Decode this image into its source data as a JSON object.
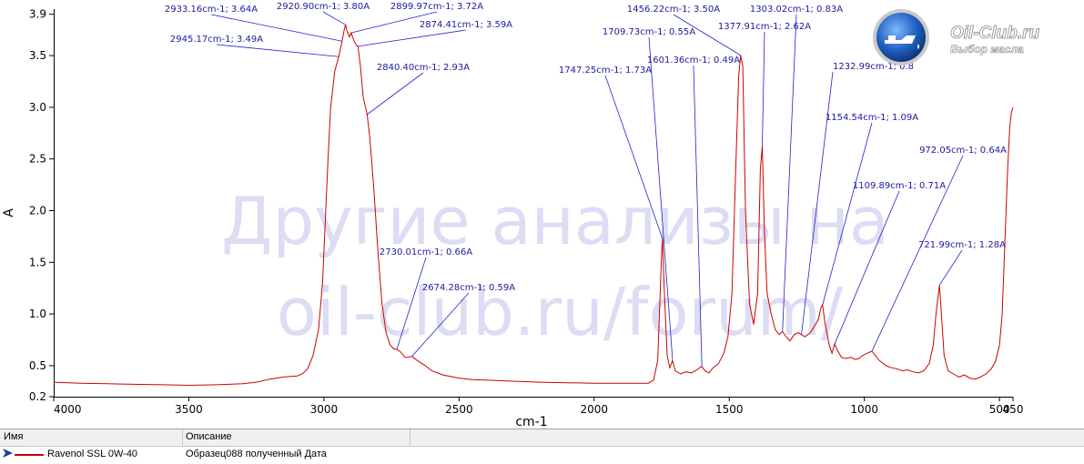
{
  "chart_data": {
    "type": "line",
    "xlabel": "cm-1",
    "ylabel": "A",
    "xlim": [
      4000,
      450
    ],
    "ylim": [
      0.2,
      3.95
    ],
    "x_ticks": [
      4000,
      3500,
      3000,
      2500,
      2000,
      1500,
      1000,
      500,
      450
    ],
    "y_ticks": [
      0.2,
      0.5,
      1.0,
      1.5,
      2.0,
      2.5,
      3.0,
      3.5,
      3.9
    ],
    "series": [
      {
        "name": "Ravenol SSL 0W-40",
        "color": "#cc0000",
        "points": [
          [
            4000,
            0.34
          ],
          [
            3900,
            0.33
          ],
          [
            3800,
            0.325
          ],
          [
            3700,
            0.32
          ],
          [
            3600,
            0.315
          ],
          [
            3500,
            0.31
          ],
          [
            3400,
            0.315
          ],
          [
            3300,
            0.325
          ],
          [
            3250,
            0.34
          ],
          [
            3200,
            0.37
          ],
          [
            3150,
            0.39
          ],
          [
            3100,
            0.4
          ],
          [
            3080,
            0.42
          ],
          [
            3060,
            0.47
          ],
          [
            3040,
            0.6
          ],
          [
            3020,
            0.85
          ],
          [
            3005,
            1.3
          ],
          [
            2995,
            1.9
          ],
          [
            2985,
            2.5
          ],
          [
            2975,
            3.0
          ],
          [
            2960,
            3.35
          ],
          [
            2945,
            3.49
          ],
          [
            2940,
            3.55
          ],
          [
            2933,
            3.64
          ],
          [
            2925,
            3.75
          ],
          [
            2920,
            3.8
          ],
          [
            2915,
            3.74
          ],
          [
            2905,
            3.68
          ],
          [
            2899,
            3.72
          ],
          [
            2890,
            3.65
          ],
          [
            2880,
            3.6
          ],
          [
            2874,
            3.59
          ],
          [
            2865,
            3.4
          ],
          [
            2855,
            3.1
          ],
          [
            2840,
            2.93
          ],
          [
            2830,
            2.7
          ],
          [
            2815,
            2.2
          ],
          [
            2800,
            1.6
          ],
          [
            2785,
            1.1
          ],
          [
            2770,
            0.82
          ],
          [
            2755,
            0.7
          ],
          [
            2740,
            0.66
          ],
          [
            2730,
            0.66
          ],
          [
            2715,
            0.63
          ],
          [
            2700,
            0.58
          ],
          [
            2690,
            0.58
          ],
          [
            2674,
            0.59
          ],
          [
            2655,
            0.55
          ],
          [
            2625,
            0.5
          ],
          [
            2600,
            0.45
          ],
          [
            2560,
            0.41
          ],
          [
            2500,
            0.38
          ],
          [
            2450,
            0.365
          ],
          [
            2400,
            0.36
          ],
          [
            2300,
            0.35
          ],
          [
            2200,
            0.34
          ],
          [
            2100,
            0.335
          ],
          [
            2000,
            0.33
          ],
          [
            1900,
            0.33
          ],
          [
            1800,
            0.33
          ],
          [
            1780,
            0.36
          ],
          [
            1765,
            0.55
          ],
          [
            1757,
            1.1
          ],
          [
            1750,
            1.6
          ],
          [
            1747,
            1.73
          ],
          [
            1740,
            1.2
          ],
          [
            1730,
            0.6
          ],
          [
            1720,
            0.48
          ],
          [
            1710,
            0.55
          ],
          [
            1700,
            0.45
          ],
          [
            1680,
            0.42
          ],
          [
            1660,
            0.44
          ],
          [
            1640,
            0.43
          ],
          [
            1620,
            0.46
          ],
          [
            1605,
            0.49
          ],
          [
            1601,
            0.49
          ],
          [
            1590,
            0.45
          ],
          [
            1575,
            0.43
          ],
          [
            1560,
            0.48
          ],
          [
            1540,
            0.52
          ],
          [
            1520,
            0.62
          ],
          [
            1505,
            0.78
          ],
          [
            1490,
            1.2
          ],
          [
            1475,
            2.5
          ],
          [
            1465,
            3.3
          ],
          [
            1458,
            3.5
          ],
          [
            1450,
            3.4
          ],
          [
            1440,
            2.0
          ],
          [
            1425,
            1.1
          ],
          [
            1410,
            0.9
          ],
          [
            1395,
            1.2
          ],
          [
            1385,
            2.4
          ],
          [
            1378,
            2.62
          ],
          [
            1370,
            1.8
          ],
          [
            1360,
            1.2
          ],
          [
            1345,
            1.0
          ],
          [
            1330,
            0.85
          ],
          [
            1315,
            0.8
          ],
          [
            1303,
            0.83
          ],
          [
            1290,
            0.78
          ],
          [
            1275,
            0.74
          ],
          [
            1260,
            0.8
          ],
          [
            1245,
            0.82
          ],
          [
            1233,
            0.8
          ],
          [
            1220,
            0.78
          ],
          [
            1200,
            0.82
          ],
          [
            1185,
            0.88
          ],
          [
            1170,
            0.95
          ],
          [
            1162,
            1.05
          ],
          [
            1155,
            1.09
          ],
          [
            1145,
            0.9
          ],
          [
            1130,
            0.7
          ],
          [
            1120,
            0.62
          ],
          [
            1110,
            0.71
          ],
          [
            1100,
            0.65
          ],
          [
            1085,
            0.58
          ],
          [
            1070,
            0.57
          ],
          [
            1050,
            0.58
          ],
          [
            1035,
            0.56
          ],
          [
            1020,
            0.57
          ],
          [
            1005,
            0.6
          ],
          [
            990,
            0.62
          ],
          [
            972,
            0.64
          ],
          [
            960,
            0.6
          ],
          [
            945,
            0.55
          ],
          [
            920,
            0.5
          ],
          [
            900,
            0.48
          ],
          [
            880,
            0.47
          ],
          [
            860,
            0.45
          ],
          [
            840,
            0.46
          ],
          [
            820,
            0.44
          ],
          [
            800,
            0.43
          ],
          [
            780,
            0.45
          ],
          [
            760,
            0.52
          ],
          [
            745,
            0.7
          ],
          [
            735,
            1.0
          ],
          [
            722,
            1.28
          ],
          [
            715,
            1.0
          ],
          [
            705,
            0.6
          ],
          [
            690,
            0.45
          ],
          [
            670,
            0.42
          ],
          [
            650,
            0.39
          ],
          [
            630,
            0.41
          ],
          [
            610,
            0.38
          ],
          [
            590,
            0.37
          ],
          [
            570,
            0.39
          ],
          [
            550,
            0.42
          ],
          [
            530,
            0.47
          ],
          [
            515,
            0.54
          ],
          [
            500,
            0.7
          ],
          [
            490,
            1.0
          ],
          [
            480,
            1.7
          ],
          [
            470,
            2.4
          ],
          [
            462,
            2.8
          ],
          [
            456,
            2.95
          ],
          [
            450,
            3.0
          ]
        ]
      }
    ],
    "annotations": [
      {
        "x": 2945.17,
        "y": 3.49,
        "label": "2945.17cm-1; 3.49A"
      },
      {
        "x": 2933.16,
        "y": 3.64,
        "label": "2933.16cm-1; 3.64A"
      },
      {
        "x": 2920.9,
        "y": 3.8,
        "label": "2920.90cm-1; 3.80A"
      },
      {
        "x": 2899.97,
        "y": 3.72,
        "label": "2899.97cm-1; 3.72A"
      },
      {
        "x": 2874.41,
        "y": 3.59,
        "label": "2874.41cm-1; 3.59A"
      },
      {
        "x": 2840.4,
        "y": 2.93,
        "label": "2840.40cm-1; 2.93A"
      },
      {
        "x": 2730.01,
        "y": 0.66,
        "label": "2730.01cm-1; 0.66A"
      },
      {
        "x": 2674.28,
        "y": 0.59,
        "label": "2674.28cm-1; 0.59A"
      },
      {
        "x": 1747.25,
        "y": 1.73,
        "label": "1747.25cm-1; 1.73A"
      },
      {
        "x": 1709.73,
        "y": 0.55,
        "label": "1709.73cm-1; 0.55A"
      },
      {
        "x": 1601.36,
        "y": 0.49,
        "label": "1601.36cm-1; 0.49A"
      },
      {
        "x": 1456.22,
        "y": 3.5,
        "label": "1456.22cm-1; 3.50A"
      },
      {
        "x": 1377.91,
        "y": 2.62,
        "label": "1377.91cm-1; 2.62A"
      },
      {
        "x": 1303.02,
        "y": 0.83,
        "label": "1303.02cm-1; 0.83A"
      },
      {
        "x": 1232.99,
        "y": 0.8,
        "label": "1232.99cm-1; 0.8"
      },
      {
        "x": 1154.54,
        "y": 1.09,
        "label": "1154.54cm-1; 1.09A"
      },
      {
        "x": 1109.89,
        "y": 0.71,
        "label": "1109.89cm-1; 0.71A"
      },
      {
        "x": 972.05,
        "y": 0.64,
        "label": "972.05cm-1; 0.64A"
      },
      {
        "x": 721.99,
        "y": 1.28,
        "label": "721.99cm-1; 1.28A"
      }
    ]
  },
  "watermark": {
    "line1": "Другие анализы на",
    "line2": "oil-club.ru/forum/"
  },
  "logo": {
    "title": "Oil-Club.ru",
    "subtitle": "Выбор масла",
    "icon": "oil-can-icon"
  },
  "legend": {
    "col_name": "Имя",
    "col_desc": "Описание",
    "row_name": "Ravenol SSL 0W-40",
    "row_desc": "Образец088 полученный  Дата",
    "row_icon": "arrow-right-icon"
  }
}
